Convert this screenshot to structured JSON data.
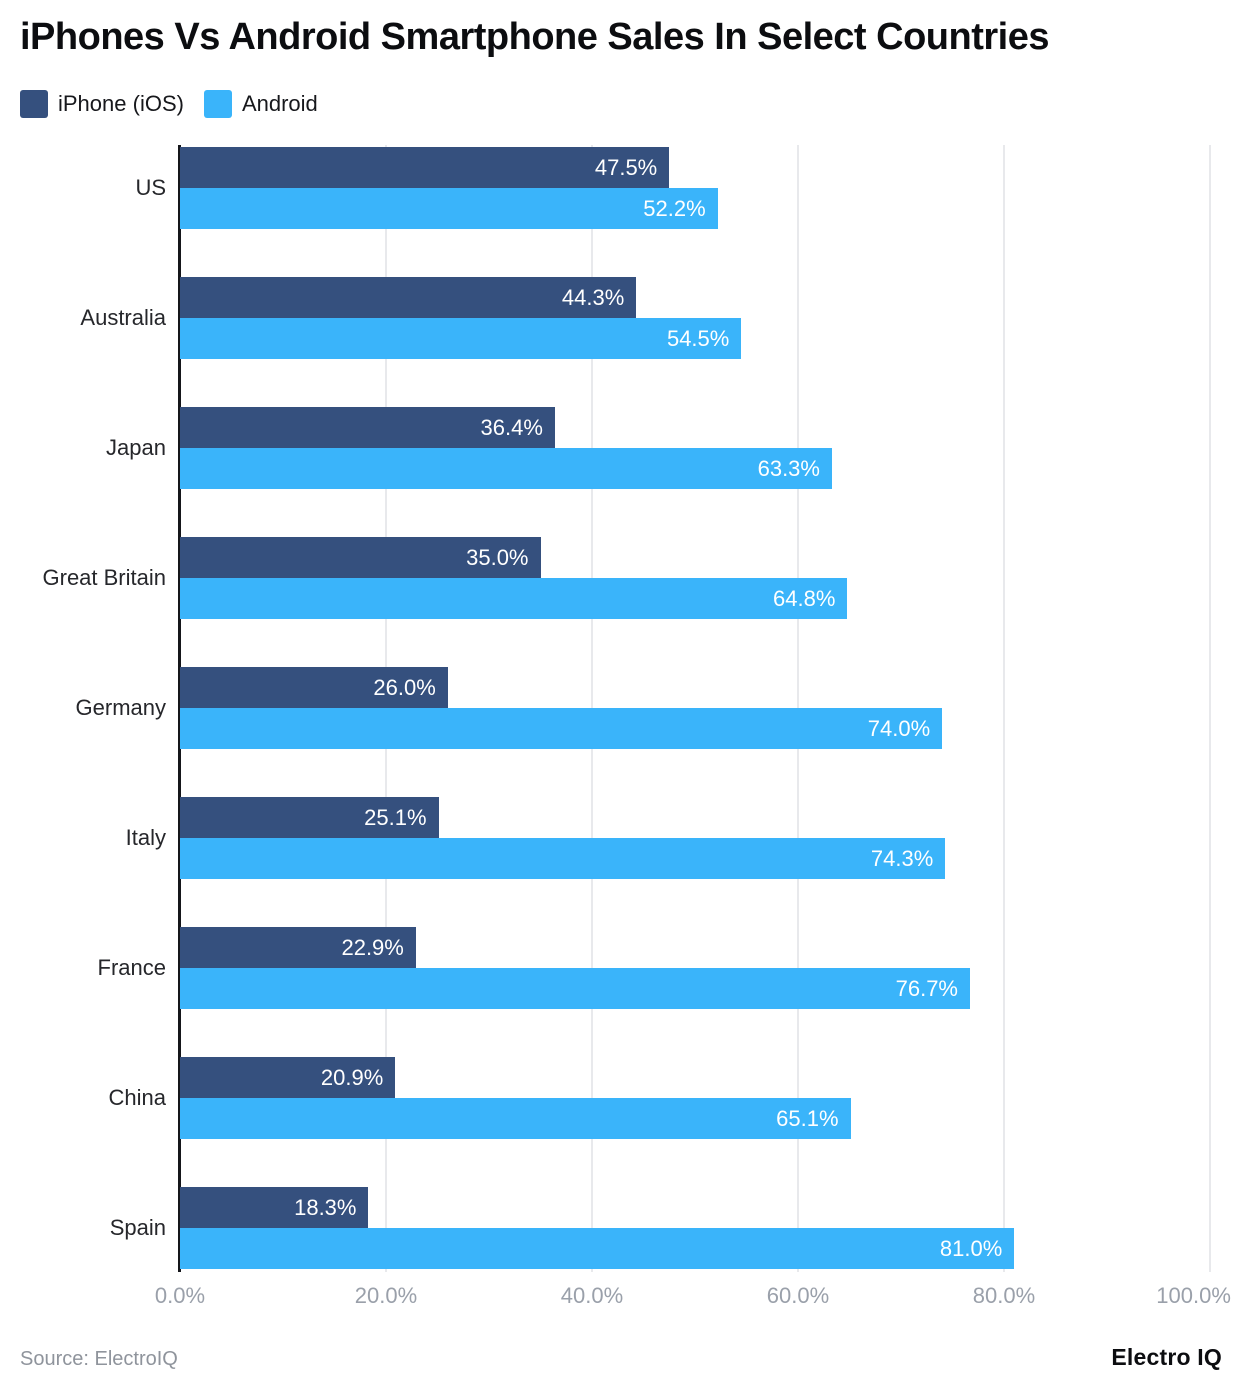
{
  "title": "iPhones Vs Android Smartphone Sales In Select Countries",
  "legend": [
    {
      "label": "iPhone (iOS)",
      "color": "#35507E"
    },
    {
      "label": "Android",
      "color": "#3AB4FA"
    }
  ],
  "chart_data": {
    "type": "bar",
    "orientation": "horizontal",
    "title": "iPhones Vs Android Smartphone Sales In Select Countries",
    "categories": [
      "US",
      "Australia",
      "Japan",
      "Great Britain",
      "Germany",
      "Italy",
      "France",
      "China",
      "Spain"
    ],
    "series": [
      {
        "name": "iPhone (iOS)",
        "color": "#35507E",
        "values": [
          47.5,
          44.3,
          36.4,
          35.0,
          26.0,
          25.1,
          22.9,
          20.9,
          18.3
        ]
      },
      {
        "name": "Android",
        "color": "#3AB4FA",
        "values": [
          52.2,
          54.5,
          63.3,
          64.8,
          74.0,
          74.3,
          76.7,
          65.1,
          81.0
        ]
      }
    ],
    "value_labels": [
      [
        "47.5%",
        "44.3%",
        "36.4%",
        "35.0%",
        "26.0%",
        "25.1%",
        "22.9%",
        "20.9%",
        "18.3%"
      ],
      [
        "52.2%",
        "54.5%",
        "63.3%",
        "64.8%",
        "74.0%",
        "74.3%",
        "76.7%",
        "65.1%",
        "81.0%"
      ]
    ],
    "xlabel": "",
    "ylabel": "",
    "xlim": [
      0,
      100
    ],
    "x_ticks": [
      {
        "value": 0,
        "label": "0.0%"
      },
      {
        "value": 20,
        "label": "20.0%"
      },
      {
        "value": 40,
        "label": "40.0%"
      },
      {
        "value": 60,
        "label": "60.0%"
      },
      {
        "value": 80,
        "label": "80.0%"
      },
      {
        "value": 100,
        "label": "100.0%"
      }
    ],
    "grid": true,
    "legend_position": "top-left"
  },
  "footer": {
    "source": "Source: ElectroIQ",
    "brand": "Electro IQ"
  },
  "colors": {
    "grid": "#e8e9ec",
    "axis": "#15161a",
    "tick_label": "#9aa0aa",
    "bar_value_label": "#ffffff",
    "country_label": "#26272b",
    "source_text": "#8f949c"
  }
}
